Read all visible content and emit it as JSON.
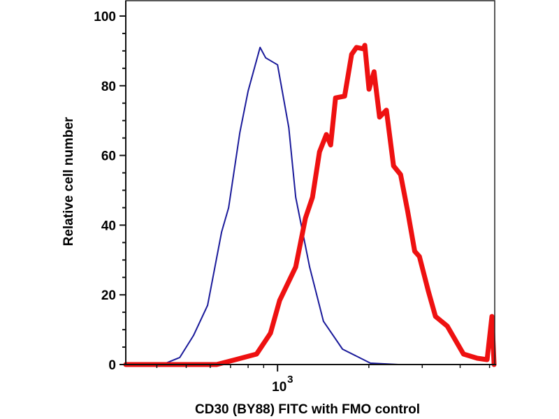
{
  "chart_data": {
    "type": "line",
    "title": "",
    "xlabel": "CD30 (BY88) FITC with FMO control",
    "ylabel": "Relative cell number",
    "xscale": "log",
    "xlim": [
      316,
      5200
    ],
    "ylim": [
      0,
      104.4
    ],
    "x_major_ticks": [
      {
        "value": 1000,
        "base": "10",
        "exp": "3"
      }
    ],
    "x_minor_ticks": [
      400,
      500,
      600,
      700,
      800,
      900,
      2000,
      3000,
      4000,
      5000
    ],
    "y_ticks": [
      0,
      20,
      40,
      60,
      80,
      100
    ],
    "y_minor_step": 5,
    "grid": false,
    "series": [
      {
        "role": "FMO control",
        "color": "#1a1a9a",
        "x": [
          316,
          428,
          476,
          529,
          588,
          654,
          690,
          751,
          800,
          876,
          914,
          1000,
          1089,
          1148,
          1276,
          1417,
          1638,
          2024,
          2503,
          5204
        ],
        "y": [
          0,
          0.4,
          2,
          8.4,
          17,
          38,
          45,
          66.5,
          78.5,
          91,
          88,
          86,
          68,
          48,
          28,
          12.4,
          4.4,
          0.4,
          0,
          0
        ]
      },
      {
        "role": "CD30 (BY88) FITC",
        "color": "#ee1111",
        "x": [
          316,
          630,
          727,
          853,
          948,
          1016,
          1148,
          1236,
          1304,
          1375,
          1449,
          1497,
          1553,
          1664,
          1755,
          1821,
          1920,
          1940,
          2003,
          2080,
          2169,
          2285,
          2412,
          2545,
          2685,
          2833,
          2935,
          3144,
          3316,
          3629,
          4102,
          4557,
          4907,
          5092,
          5175
        ],
        "y": [
          0,
          0,
          1.4,
          3,
          9,
          18.4,
          28,
          42,
          48,
          61,
          66,
          63,
          76.5,
          77,
          89,
          91,
          90.6,
          91.6,
          79,
          84,
          71,
          73,
          57,
          54.5,
          44,
          32.5,
          31,
          21,
          13.8,
          11,
          3,
          1.8,
          1.4,
          13.8,
          0
        ]
      }
    ]
  }
}
